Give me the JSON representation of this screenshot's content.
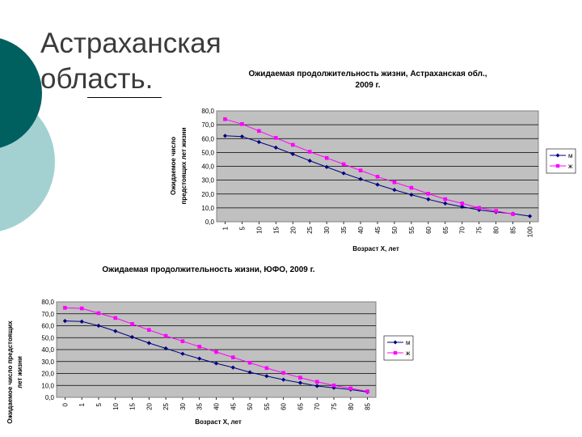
{
  "slide": {
    "title_line1": "Астраханская",
    "title_line2": "область."
  },
  "colors": {
    "male": "#000080",
    "female": "#ff00ff",
    "plot_bg": "#c0c0c0",
    "deco_dark": "#006060",
    "deco_light": "#a3d1d1"
  },
  "chart_data": [
    {
      "type": "line",
      "title_line1": "Ожидаемая продолжительность жизни,  Астраханская обл.,",
      "title_line2": "2009 г.",
      "xlabel": "Возраст X, лет",
      "ylabel_line1": "Ожидаемое число",
      "ylabel_line2": "предстоящих лет жизни",
      "ylim": [
        0,
        80
      ],
      "yticks": [
        "0,0",
        "10,0",
        "20,0",
        "30,0",
        "40,0",
        "50,0",
        "60,0",
        "70,0",
        "80,0"
      ],
      "categories": [
        "1",
        "5",
        "10",
        "15",
        "20",
        "25",
        "30",
        "35",
        "40",
        "45",
        "50",
        "55",
        "60",
        "65",
        "70",
        "75",
        "80",
        "85",
        "100"
      ],
      "grid": true,
      "legend": "right",
      "series": [
        {
          "name": "м",
          "values": [
            62,
            61.5,
            57.5,
            53.5,
            48.8,
            44,
            39.5,
            35,
            30.8,
            26.8,
            23,
            19.5,
            16.2,
            13.2,
            10.8,
            8.5,
            7,
            5.8,
            4
          ]
        },
        {
          "name": "ж",
          "values": [
            74,
            70.5,
            65.5,
            60.5,
            55.5,
            50.5,
            46,
            41.5,
            37,
            32.5,
            28.5,
            24.5,
            20.2,
            16.3,
            13.2,
            10,
            7.8,
            5.5,
            null
          ]
        }
      ]
    },
    {
      "type": "line",
      "title_line1": "Ожидаемая продолжительность жизни,  ЮФО, 2009 г.",
      "title_line2": "",
      "xlabel": "Возраст X, лет",
      "ylabel_line1": "Ожидаемое число предстоящих",
      "ylabel_line2": "лет жизни",
      "ylim": [
        0,
        80
      ],
      "yticks": [
        "0,0",
        "10,0",
        "20,0",
        "30,0",
        "40,0",
        "50,0",
        "60,0",
        "70,0",
        "80,0"
      ],
      "categories": [
        "0",
        "1",
        "5",
        "10",
        "15",
        "20",
        "25",
        "30",
        "35",
        "40",
        "45",
        "50",
        "55",
        "60",
        "65",
        "70",
        "75",
        "80",
        "85"
      ],
      "grid": true,
      "legend": "right",
      "series": [
        {
          "name": "м",
          "values": [
            64,
            63.5,
            60,
            55.5,
            50.5,
            45.5,
            41,
            36.5,
            32.5,
            28.5,
            25,
            21,
            17.8,
            14.8,
            12.2,
            9.5,
            8,
            6.5,
            4.5
          ]
        },
        {
          "name": "ж",
          "values": [
            75,
            74.5,
            70.5,
            66.5,
            61.5,
            56.5,
            51.5,
            47,
            42.5,
            38,
            33.5,
            29,
            24.5,
            20.5,
            16.5,
            13,
            10,
            7.5,
            5
          ]
        }
      ]
    }
  ]
}
